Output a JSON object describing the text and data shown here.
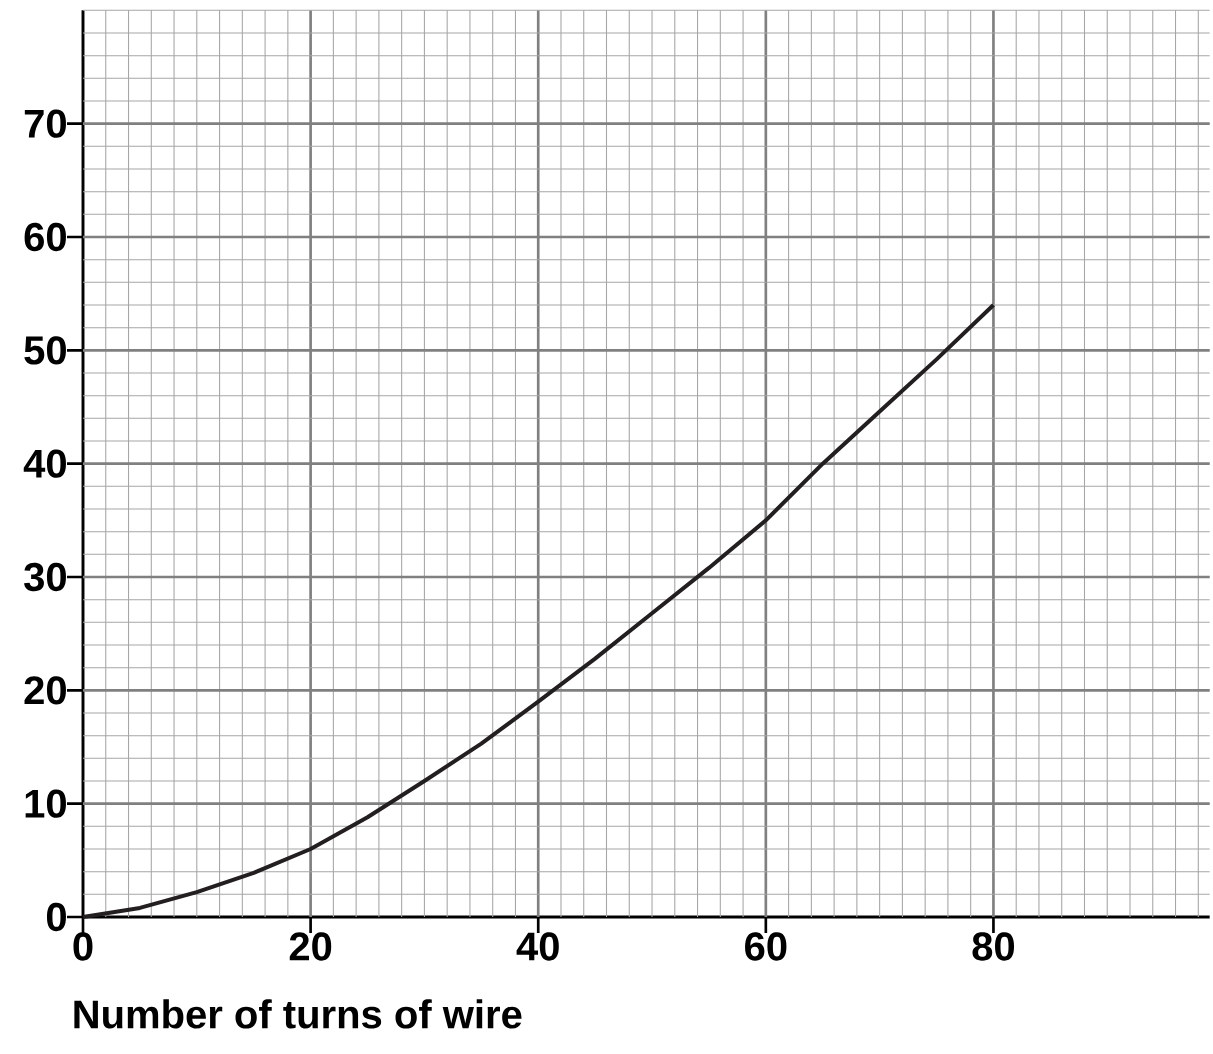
{
  "chart_data": {
    "type": "line",
    "xlabel": "Number of turns of wire",
    "x": [
      0,
      5,
      10,
      15,
      20,
      25,
      30,
      35,
      40,
      45,
      50,
      55,
      60,
      65,
      70,
      75,
      80
    ],
    "series": [
      {
        "color": "#231f20",
        "values": [
          0,
          0.8,
          2.2,
          3.9,
          6,
          8.8,
          12,
          15.3,
          19,
          22.8,
          26.8,
          30.8,
          35,
          40,
          44.6,
          49.2,
          54
        ]
      }
    ],
    "xlim": [
      0,
      99
    ],
    "ylim": [
      0,
      80
    ],
    "xticks": [
      0,
      20,
      40,
      60,
      80
    ],
    "yticks": [
      0,
      10,
      20,
      30,
      40,
      50,
      60,
      70
    ],
    "grid": true,
    "marker": "none",
    "line_style": "solid"
  }
}
